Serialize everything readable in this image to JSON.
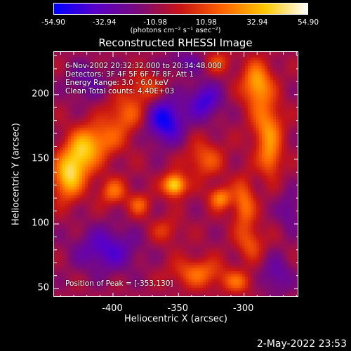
{
  "colorbar": {
    "ticks": [
      "-54.90",
      "-32.94",
      "-10.98",
      "10.98",
      "32.94",
      "54.90"
    ],
    "unit": "(photons cm⁻² s⁻¹ asec⁻²)",
    "colors": [
      "#0000ff",
      "#5a00c8",
      "#7a0a7a",
      "#c81414",
      "#ff6400",
      "#ffc800",
      "#ffffff"
    ]
  },
  "title": "Reconstructed RHESSI Image",
  "annotations": {
    "time_range": "6-Nov-2002 20:32:32.000 to 20:34:48.000",
    "detectors": "Detectors: 3F 4F 5F 6F 7F 8F, Att 1",
    "energy": "Energy Range: 3.0 - 6.0 keV",
    "clean": "Clean    Total counts: 4.40E+03",
    "peak": "Position of Peak = [-353,130]"
  },
  "footer": "2-May-2022 23:53",
  "chart_data": {
    "type": "heatmap",
    "xlabel": "Heliocentric X (arcsec)",
    "ylabel": "Heliocentric Y (arcsec)",
    "xlim": [
      -445,
      -258
    ],
    "ylim": [
      43,
      233
    ],
    "xticks": [
      -400,
      -350,
      -300
    ],
    "yticks": [
      50,
      100,
      150,
      200
    ],
    "xtick_labels": [
      "-400",
      "-350",
      "-300"
    ],
    "ytick_labels": [
      "50",
      "100",
      "150",
      "200"
    ],
    "zlim": [
      -54.9,
      54.9
    ],
    "peak": [
      -353,
      130
    ],
    "sources": [
      {
        "x": -353,
        "y": 130,
        "sx": 6,
        "sy": 6,
        "a": 54.9
      },
      {
        "x": -435,
        "y": 135,
        "sx": 8,
        "sy": 12,
        "a": 42
      },
      {
        "x": -425,
        "y": 152,
        "sx": 9,
        "sy": 12,
        "a": 40
      },
      {
        "x": -410,
        "y": 165,
        "sx": 12,
        "sy": 10,
        "a": 30
      },
      {
        "x": -390,
        "y": 185,
        "sx": 10,
        "sy": 10,
        "a": 26
      },
      {
        "x": -375,
        "y": 205,
        "sx": 9,
        "sy": 8,
        "a": 22
      },
      {
        "x": -400,
        "y": 125,
        "sx": 7,
        "sy": 7,
        "a": 28
      },
      {
        "x": -380,
        "y": 115,
        "sx": 6,
        "sy": 6,
        "a": 24
      },
      {
        "x": -330,
        "y": 150,
        "sx": 10,
        "sy": 10,
        "a": 24
      },
      {
        "x": -318,
        "y": 120,
        "sx": 6,
        "sy": 6,
        "a": 35
      },
      {
        "x": -300,
        "y": 115,
        "sx": 6,
        "sy": 14,
        "a": 30
      },
      {
        "x": -295,
        "y": 85,
        "sx": 7,
        "sy": 9,
        "a": 22
      },
      {
        "x": -280,
        "y": 150,
        "sx": 6,
        "sy": 10,
        "a": 28
      },
      {
        "x": -282,
        "y": 175,
        "sx": 8,
        "sy": 14,
        "a": 34
      },
      {
        "x": -290,
        "y": 208,
        "sx": 8,
        "sy": 12,
        "a": 42
      },
      {
        "x": -320,
        "y": 225,
        "sx": 7,
        "sy": 6,
        "a": 20
      },
      {
        "x": -335,
        "y": 62,
        "sx": 14,
        "sy": 8,
        "a": 28
      },
      {
        "x": -305,
        "y": 55,
        "sx": 8,
        "sy": 6,
        "a": 24
      },
      {
        "x": -360,
        "y": 95,
        "sx": 8,
        "sy": 7,
        "a": 16
      },
      {
        "x": -360,
        "y": 180,
        "sx": 10,
        "sy": 12,
        "a": -42
      },
      {
        "x": -330,
        "y": 195,
        "sx": 9,
        "sy": 10,
        "a": -32
      },
      {
        "x": -405,
        "y": 80,
        "sx": 16,
        "sy": 12,
        "a": -28
      },
      {
        "x": -420,
        "y": 210,
        "sx": 10,
        "sy": 10,
        "a": -18
      },
      {
        "x": -275,
        "y": 60,
        "sx": 8,
        "sy": 10,
        "a": -20
      },
      {
        "x": -265,
        "y": 110,
        "sx": 6,
        "sy": 10,
        "a": -18
      },
      {
        "x": -345,
        "y": 225,
        "sx": 10,
        "sy": 6,
        "a": -18
      }
    ]
  }
}
